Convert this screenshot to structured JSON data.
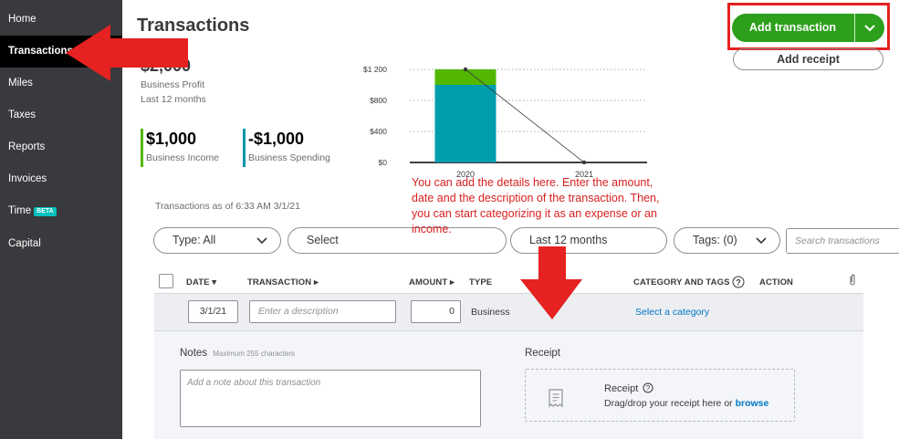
{
  "sidebar": {
    "items": [
      {
        "label": "Home"
      },
      {
        "label": "Transactions"
      },
      {
        "label": "Miles"
      },
      {
        "label": "Taxes"
      },
      {
        "label": "Reports"
      },
      {
        "label": "Invoices"
      },
      {
        "label": "Time",
        "badge": "BETA"
      },
      {
        "label": "Capital"
      }
    ],
    "active": "Transactions"
  },
  "header": {
    "title": "Transactions",
    "add_transaction_label": "Add transaction",
    "add_receipt_label": "Add receipt"
  },
  "summary": {
    "profit_value": "$2,000",
    "profit_label": "Business Profit",
    "profit_period": "Last 12 months",
    "income_value": "$1,000",
    "income_label": "Business Income",
    "spending_value": "-$1,000",
    "spending_label": "Business Spending",
    "colors": {
      "income": "#53b700",
      "spending": "#0097a8",
      "annotation": "#e52121",
      "primary_button": "#2ca01c",
      "link": "#0077c5"
    }
  },
  "chart_data": {
    "type": "bar",
    "categories": [
      "2020",
      "2021"
    ],
    "series": [
      {
        "values": [
          1000,
          0
        ],
        "color": "#009ead"
      },
      {
        "values": [
          200,
          0
        ],
        "color": "#53b700"
      }
    ],
    "line": {
      "values": [
        1200,
        0
      ]
    },
    "y_ticks": [
      "$0",
      "$400",
      "$800",
      "$1 200"
    ],
    "ylim": [
      0,
      1200
    ],
    "grid": true
  },
  "table": {
    "as_of": "Transactions as of 6:33 AM 3/1/21",
    "filters": {
      "type": "Type: All",
      "account": "Select",
      "date_range": "Last 12 months",
      "tags": "Tags: (0)",
      "search_placeholder": "Search transactions"
    },
    "columns": {
      "date": "DATE",
      "transaction": "TRANSACTION",
      "amount": "AMOUNT",
      "type": "TYPE",
      "category": "CATEGORY AND TAGS",
      "action": "ACTION"
    },
    "new_row": {
      "date": "3/1/21",
      "description_placeholder": "Enter a description",
      "amount": "0",
      "type": "Business",
      "category_link": "Select a category"
    },
    "notes": {
      "label": "Notes",
      "hint": "Maximum 255 characters",
      "placeholder": "Add a note about this transaction"
    },
    "receipt": {
      "label": "Receipt",
      "box_title": "Receipt",
      "box_text": "Drag/drop your receipt here or",
      "browse_link": "browse"
    }
  },
  "annotation": {
    "text": "You can add the details here. Enter the amount, date and the description of the transaction. Then, you can start categorizing it as an expense or an income."
  }
}
